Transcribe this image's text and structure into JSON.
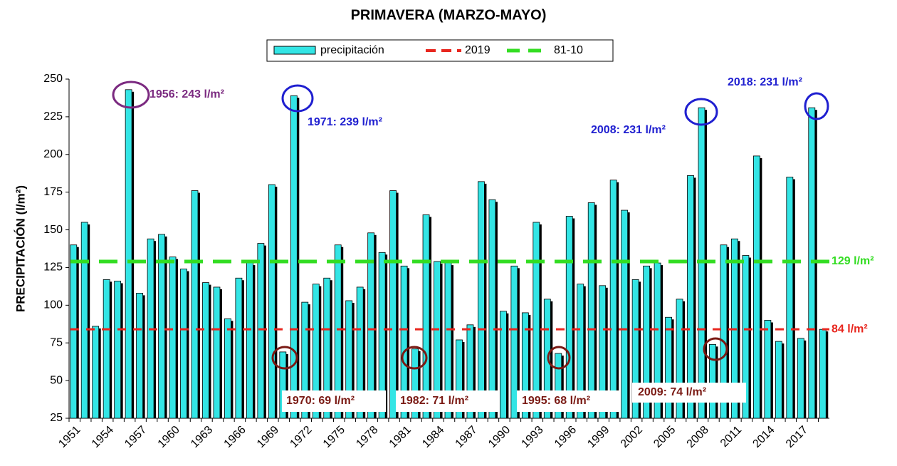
{
  "chart_data": {
    "type": "bar",
    "title": "PRIMAVERA (MARZO-MAYO)",
    "y_label": "PRECIPITACIÓN (l/m²)",
    "categories": [
      "1951",
      null,
      null,
      "1954",
      null,
      null,
      "1957",
      null,
      null,
      "1960",
      null,
      null,
      "1963",
      null,
      null,
      "1966",
      null,
      null,
      "1969",
      null,
      null,
      "1972",
      null,
      null,
      "1975",
      null,
      null,
      "1978",
      null,
      null,
      "1981",
      null,
      null,
      "1984",
      null,
      null,
      "1987",
      null,
      null,
      "1990",
      null,
      null,
      "1993",
      null,
      null,
      "1996",
      null,
      null,
      "1999",
      null,
      null,
      "2002",
      null,
      null,
      "2005",
      null,
      null,
      "2008",
      null,
      null,
      "2011",
      null,
      null,
      "2014",
      null,
      null,
      "2017",
      null,
      null
    ],
    "series": [
      {
        "name": "precipitación",
        "color": "#33e5e5",
        "values": [
          140,
          155,
          86,
          117,
          116,
          243,
          108,
          144,
          147,
          132,
          124,
          176,
          115,
          112,
          91,
          118,
          128,
          141,
          180,
          69,
          239,
          102,
          114,
          118,
          140,
          103,
          112,
          148,
          135,
          176,
          126,
          71,
          160,
          129,
          128,
          77,
          87,
          182,
          170,
          96,
          126,
          95,
          155,
          104,
          68,
          159,
          114,
          168,
          113,
          183,
          163,
          117,
          126,
          128,
          92,
          104,
          186,
          231,
          74,
          140,
          144,
          133,
          199,
          90,
          76,
          185,
          78,
          231,
          84
        ]
      }
    ],
    "reference_lines": [
      {
        "name": "2019",
        "value": 84,
        "label": "84 l/m²",
        "color": "#e8261e"
      },
      {
        "name": "81-10",
        "value": 129,
        "label": "129 l/m²",
        "color": "#33dd22"
      }
    ],
    "annotations": [
      {
        "text": "1956: 243 l/m²",
        "color": "#7b2a80"
      },
      {
        "text": "1971: 239 l/m²",
        "color": "#1f1fd0"
      },
      {
        "text": "2008: 231 l/m²",
        "color": "#1f1fd0"
      },
      {
        "text": "2018: 231 l/m²",
        "color": "#1f1fd0"
      },
      {
        "text": "1970: 69 l/m²",
        "color": "#7a1a14"
      },
      {
        "text": "1982: 71 l/m²",
        "color": "#7a1a14"
      },
      {
        "text": "1995: 68 l/m²",
        "color": "#7a1a14"
      },
      {
        "text": "2009: 74 l/m²",
        "color": "#7a1a14"
      }
    ],
    "ylim": [
      25,
      250
    ],
    "yticks": [
      25,
      50,
      75,
      100,
      125,
      150,
      175,
      200,
      225,
      250
    ],
    "legend": "top"
  }
}
